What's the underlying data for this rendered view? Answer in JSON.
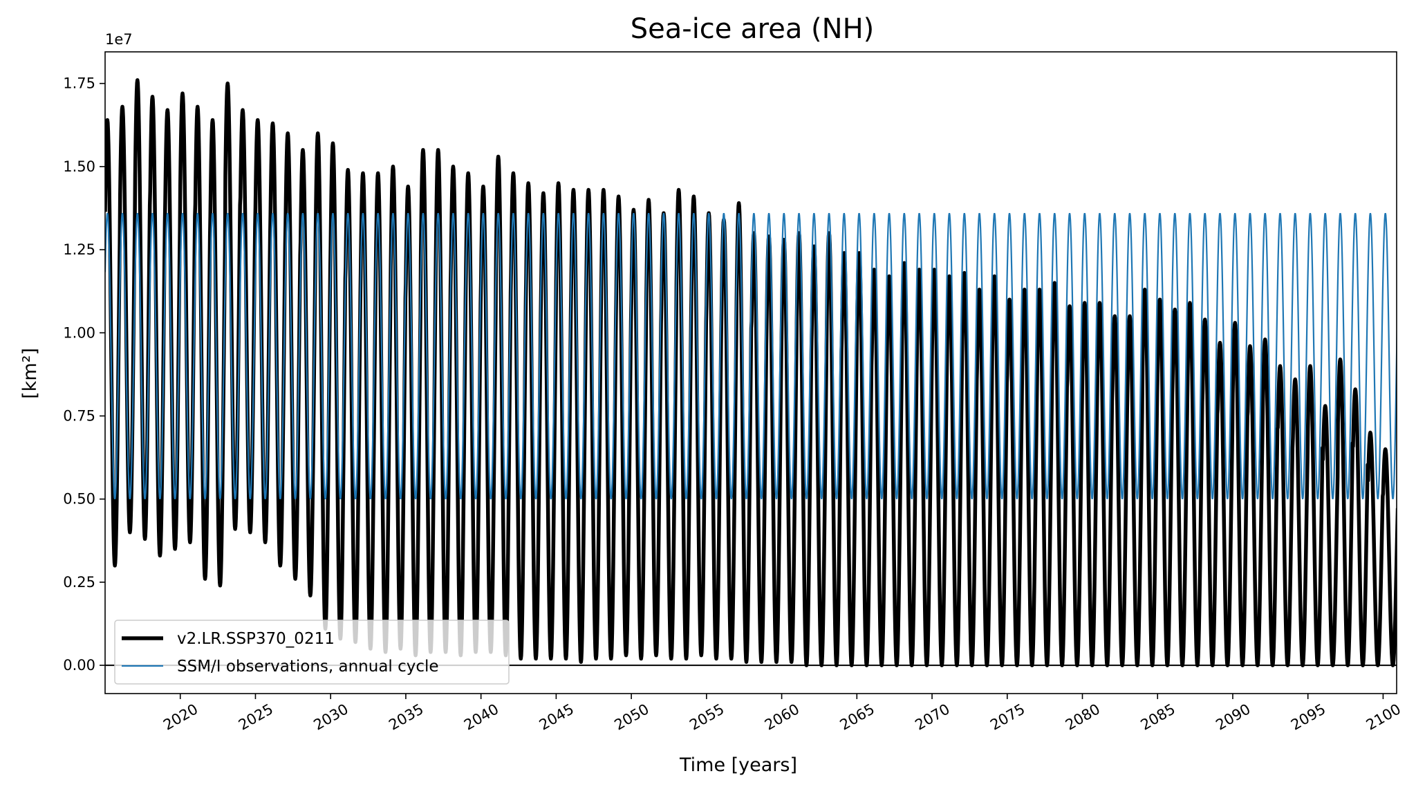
{
  "chart_data": {
    "type": "line",
    "title": "Sea-ice area (NH)",
    "xlabel": "Time [years]",
    "ylabel": "[km²]",
    "y_multiplier_label": "1e7",
    "xlim": [
      2015,
      2100.9
    ],
    "ylim": [
      -0.085,
      1.845
    ],
    "y_scale": 10000000,
    "x_ticks": [
      2020,
      2025,
      2030,
      2035,
      2040,
      2045,
      2050,
      2055,
      2060,
      2065,
      2070,
      2075,
      2080,
      2085,
      2090,
      2095,
      2100
    ],
    "x_tick_labels": [
      "2020",
      "2025",
      "2030",
      "2035",
      "2040",
      "2045",
      "2050",
      "2055",
      "2060",
      "2065",
      "2070",
      "2075",
      "2080",
      "2085",
      "2090",
      "2095",
      "2100"
    ],
    "y_ticks": [
      0.0,
      0.25,
      0.5,
      0.75,
      1.0,
      1.25,
      1.5,
      1.75
    ],
    "y_tick_labels": [
      "0.00",
      "0.25",
      "0.50",
      "0.75",
      "1.00",
      "1.25",
      "1.50",
      "1.75"
    ],
    "reference_line_y": 0.0,
    "legend_position": "lower-left",
    "series": [
      {
        "name": "v2.LR.SSP370_0211",
        "color": "#000000",
        "style": "thick",
        "years": [
          2015,
          2016,
          2017,
          2018,
          2019,
          2020,
          2021,
          2022,
          2023,
          2024,
          2025,
          2026,
          2027,
          2028,
          2029,
          2030,
          2031,
          2032,
          2033,
          2034,
          2035,
          2036,
          2037,
          2038,
          2039,
          2040,
          2041,
          2042,
          2043,
          2044,
          2045,
          2046,
          2047,
          2048,
          2049,
          2050,
          2051,
          2052,
          2053,
          2054,
          2055,
          2056,
          2057,
          2058,
          2059,
          2060,
          2061,
          2062,
          2063,
          2064,
          2065,
          2066,
          2067,
          2068,
          2069,
          2070,
          2071,
          2072,
          2073,
          2074,
          2075,
          2076,
          2077,
          2078,
          2079,
          2080,
          2081,
          2082,
          2083,
          2084,
          2085,
          2086,
          2087,
          2088,
          2089,
          2090,
          2091,
          2092,
          2093,
          2094,
          2095,
          2096,
          2097,
          2098,
          2099,
          2100
        ],
        "annual_max": [
          1.64,
          1.68,
          1.76,
          1.71,
          1.67,
          1.72,
          1.68,
          1.64,
          1.75,
          1.67,
          1.64,
          1.63,
          1.6,
          1.55,
          1.6,
          1.57,
          1.49,
          1.48,
          1.48,
          1.5,
          1.44,
          1.55,
          1.55,
          1.5,
          1.48,
          1.44,
          1.53,
          1.48,
          1.45,
          1.42,
          1.45,
          1.43,
          1.43,
          1.43,
          1.41,
          1.37,
          1.4,
          1.36,
          1.43,
          1.41,
          1.36,
          1.34,
          1.39,
          1.3,
          1.29,
          1.28,
          1.3,
          1.26,
          1.3,
          1.24,
          1.24,
          1.19,
          1.17,
          1.21,
          1.19,
          1.19,
          1.17,
          1.18,
          1.13,
          1.17,
          1.1,
          1.13,
          1.13,
          1.15,
          1.08,
          1.09,
          1.09,
          1.05,
          1.05,
          1.13,
          1.1,
          1.07,
          1.09,
          1.04,
          0.97,
          1.03,
          0.96,
          0.98,
          0.9,
          0.86,
          0.9,
          0.78,
          0.92,
          0.83,
          0.7,
          0.65
        ],
        "annual_min": [
          0.3,
          0.4,
          0.38,
          0.33,
          0.35,
          0.37,
          0.26,
          0.24,
          0.41,
          0.4,
          0.37,
          0.3,
          0.26,
          0.21,
          0.11,
          0.08,
          0.07,
          0.05,
          0.04,
          0.05,
          0.03,
          0.04,
          0.04,
          0.03,
          0.04,
          0.04,
          0.03,
          0.02,
          0.02,
          0.02,
          0.02,
          0.01,
          0.02,
          0.02,
          0.03,
          0.02,
          0.03,
          0.02,
          0.02,
          0.03,
          0.02,
          0.02,
          0.01,
          0.01,
          0.01,
          0.01,
          0.0,
          0.0,
          0.0,
          0.0,
          0.0,
          0.0,
          0.0,
          0.0,
          0.0,
          0.0,
          0.0,
          0.0,
          0.0,
          0.0,
          0.0,
          0.0,
          0.0,
          0.0,
          0.0,
          0.0,
          0.0,
          0.0,
          0.0,
          0.0,
          0.0,
          0.0,
          0.0,
          0.0,
          0.0,
          0.0,
          0.0,
          0.0,
          0.0,
          0.0,
          0.0,
          0.0,
          0.0,
          0.0,
          0.0,
          0.0
        ]
      },
      {
        "name": "SSM/I observations, annual cycle",
        "color": "#1f77b4",
        "style": "thin",
        "annual_max": 1.36,
        "annual_min": 0.5
      }
    ]
  }
}
